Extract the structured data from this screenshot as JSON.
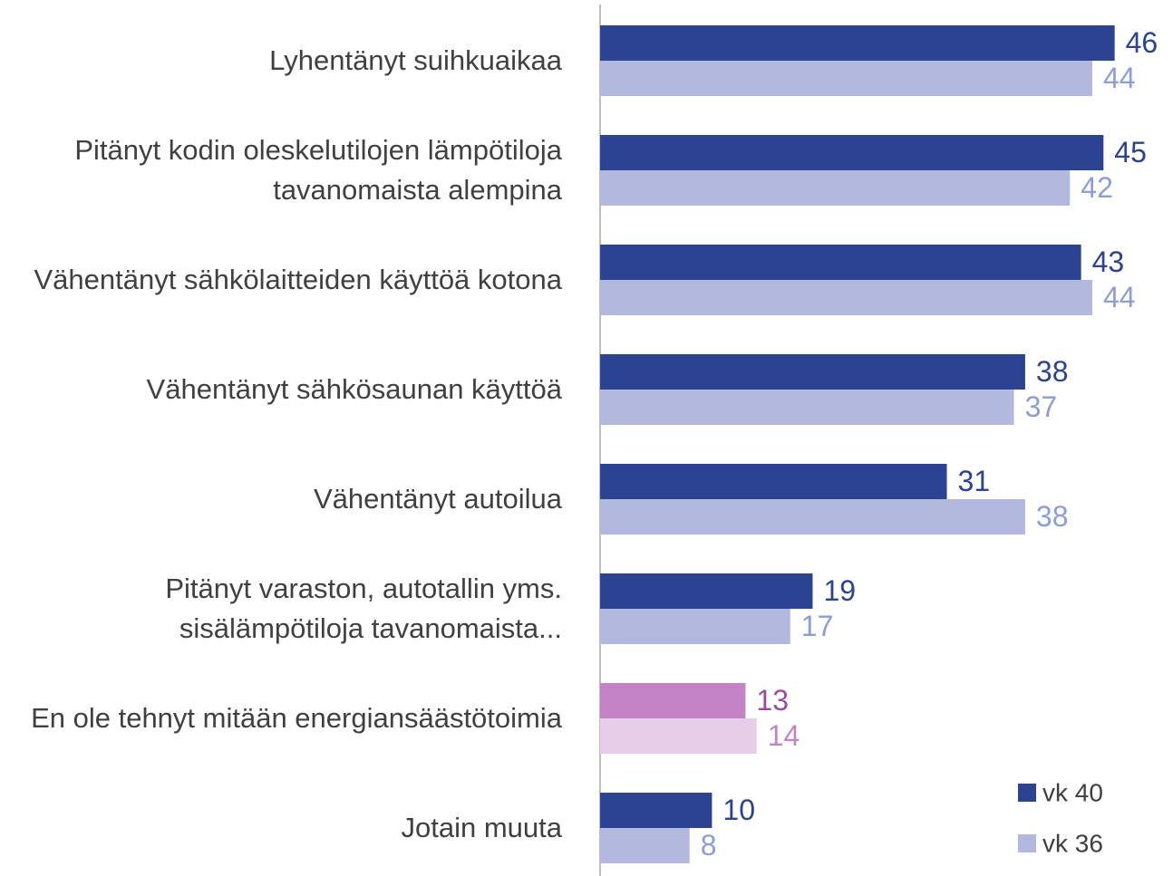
{
  "chart_data": {
    "type": "bar",
    "orientation": "horizontal",
    "categories": [
      "Lyhentänyt suihkuaikaa",
      "Pitänyt kodin oleskelutilojen lämpötiloja tavanomaista alempina",
      "Vähentänyt sähkölaitteiden käyttöä kotona",
      "Vähentänyt sähkösaunan käyttöä",
      "Vähentänyt autoilua",
      "Pitänyt varaston, autotallin yms. sisälämpötiloja tavanomaista...",
      "En ole tehnyt mitään energiansäästötoimia",
      "Jotain muuta"
    ],
    "series": [
      {
        "name": "vk 40",
        "color": "#2b4390",
        "label_color": "#2b4390",
        "values": [
          46,
          45,
          43,
          38,
          31,
          19,
          13,
          10
        ],
        "colors": [
          "#2b4390",
          "#2b4390",
          "#2b4390",
          "#2b4390",
          "#2b4390",
          "#2b4390",
          "#c583c7",
          "#2b4390"
        ],
        "label_colors": [
          "#2b4390",
          "#2b4390",
          "#2b4390",
          "#2b4390",
          "#2b4390",
          "#2b4390",
          "#9b4b9e",
          "#2b4390"
        ]
      },
      {
        "name": "vk 36",
        "color": "#b3b9de",
        "label_color": "#8c9dd8",
        "values": [
          44,
          42,
          44,
          37,
          38,
          17,
          14,
          8
        ],
        "colors": [
          "#b3b9de",
          "#b3b9de",
          "#b3b9de",
          "#b3b9de",
          "#b3b9de",
          "#b3b9de",
          "#e8cde9",
          "#b3b9de"
        ],
        "label_colors": [
          "#8c9dd8",
          "#8c9dd8",
          "#8c9dd8",
          "#8c9dd8",
          "#8c9dd8",
          "#8c9dd8",
          "#c583c7",
          "#8c9dd8"
        ]
      }
    ],
    "xlim": [
      0,
      50
    ],
    "legend": "bottom-right"
  }
}
